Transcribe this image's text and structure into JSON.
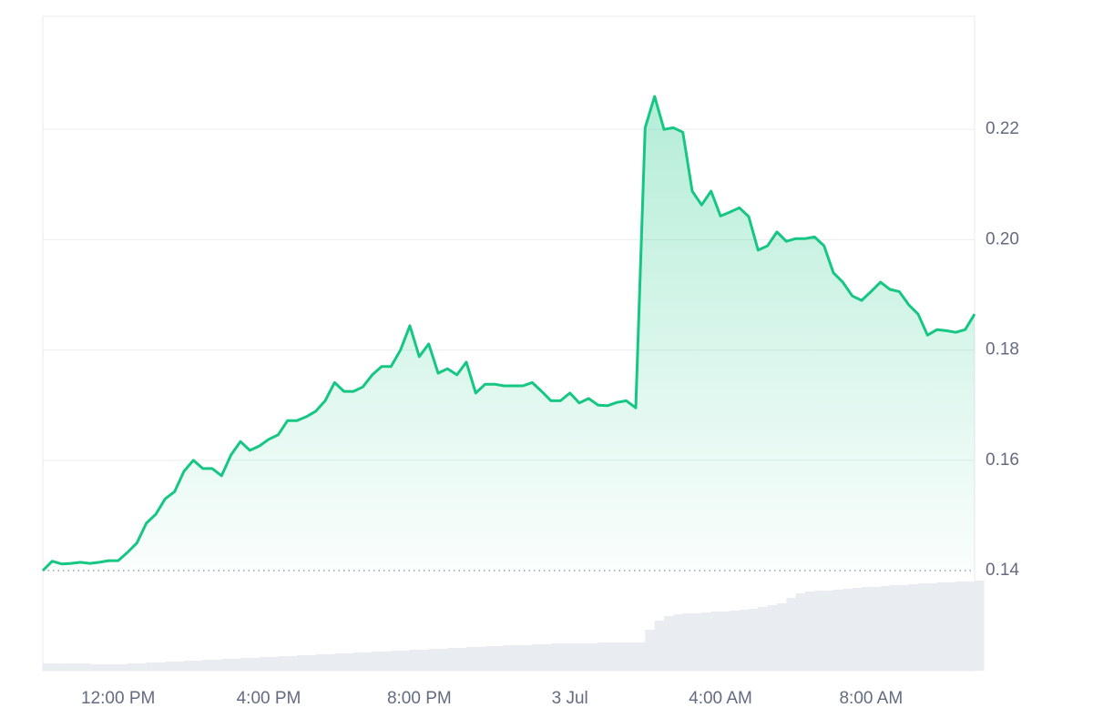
{
  "chart_data": {
    "type": "line",
    "x": [
      10,
      10.25,
      10.5,
      10.75,
      11,
      11.25,
      11.5,
      11.75,
      12,
      12.25,
      12.5,
      12.75,
      13,
      13.25,
      13.5,
      13.75,
      14,
      14.25,
      14.5,
      14.75,
      15,
      15.25,
      15.5,
      15.75,
      16,
      16.25,
      16.5,
      16.75,
      17,
      17.25,
      17.5,
      17.75,
      18,
      18.25,
      18.5,
      18.75,
      19,
      19.25,
      19.5,
      19.75,
      20,
      20.25,
      20.5,
      20.75,
      21,
      21.25,
      21.5,
      21.75,
      22,
      22.25,
      22.5,
      22.75,
      23,
      23.25,
      23.5,
      23.75,
      24,
      24.25,
      24.5,
      24.75,
      25,
      25.25,
      25.5,
      25.75,
      26,
      26.25,
      26.5,
      26.75,
      27,
      27.25,
      27.5,
      27.75,
      28,
      28.25,
      28.5,
      28.75,
      29,
      29.25,
      29.5,
      29.75,
      30,
      30.25,
      30.5,
      30.75,
      31,
      31.25,
      31.5,
      31.75,
      32,
      32.25,
      32.5,
      32.75,
      33,
      33.25,
      33.5,
      33.75,
      34,
      34.25,
      34.5,
      34.75
    ],
    "values": [
      0.14,
      0.1417,
      0.1412,
      0.1413,
      0.1415,
      0.1413,
      0.1415,
      0.1418,
      0.1418,
      0.1433,
      0.145,
      0.1486,
      0.1502,
      0.153,
      0.1543,
      0.158,
      0.16,
      0.1585,
      0.1585,
      0.1572,
      0.161,
      0.1634,
      0.1618,
      0.1626,
      0.1638,
      0.1646,
      0.1672,
      0.1672,
      0.1679,
      0.1689,
      0.1708,
      0.1741,
      0.1725,
      0.1725,
      0.1733,
      0.1755,
      0.177,
      0.177,
      0.18,
      0.1844,
      0.1788,
      0.1811,
      0.1758,
      0.1766,
      0.1755,
      0.1778,
      0.1722,
      0.1738,
      0.1738,
      0.1735,
      0.1735,
      0.1735,
      0.1741,
      0.1725,
      0.1708,
      0.1708,
      0.1722,
      0.1704,
      0.1712,
      0.17,
      0.1699,
      0.1705,
      0.1708,
      0.1695,
      0.2203,
      0.226,
      0.22,
      0.2203,
      0.2195,
      0.2088,
      0.2063,
      0.2088,
      0.2043,
      0.205,
      0.2058,
      0.2042,
      0.1981,
      0.1989,
      0.2014,
      0.1997,
      0.2002,
      0.2002,
      0.2005,
      0.1989,
      0.194,
      0.1923,
      0.1898,
      0.189,
      0.1906,
      0.1923,
      0.191,
      0.1906,
      0.1882,
      0.1865,
      0.1827,
      0.1837,
      0.1835,
      0.1832,
      0.1837,
      0.1865
    ],
    "color": "#16c784",
    "volume": {
      "color": "#e9ecf1",
      "ylim": [
        0,
        110
      ],
      "values": [
        8,
        8,
        8,
        8,
        8,
        7,
        7,
        7,
        7,
        8,
        8,
        9,
        9,
        10,
        10,
        11,
        11,
        12,
        12,
        13,
        13,
        14,
        14,
        15,
        15,
        16,
        16,
        17,
        17,
        18,
        18,
        19,
        19,
        20,
        20,
        21,
        21,
        22,
        22,
        23,
        23,
        24,
        24,
        25,
        25,
        26,
        26,
        27,
        27,
        28,
        28,
        28,
        29,
        29,
        30,
        30,
        30,
        30,
        30,
        31,
        31,
        31,
        31,
        31,
        45,
        55,
        60,
        62,
        63,
        63,
        64,
        65,
        65,
        66,
        67,
        68,
        70,
        72,
        74,
        80,
        85,
        87,
        88,
        88,
        89,
        90,
        91,
        92,
        92,
        93,
        94,
        94,
        95,
        96,
        96,
        97,
        97,
        98,
        98,
        99
      ]
    },
    "xlim": [
      10,
      34.75
    ],
    "xticks": [
      {
        "value": 12,
        "label": "12:00 PM"
      },
      {
        "value": 16,
        "label": "4:00 PM"
      },
      {
        "value": 20,
        "label": "8:00 PM"
      },
      {
        "value": 24,
        "label": "3 Jul"
      },
      {
        "value": 28,
        "label": "4:00 AM"
      },
      {
        "value": 32,
        "label": "8:00 AM"
      }
    ],
    "ylim": [
      0.14,
      0.2405
    ],
    "yticks": [
      0.14,
      0.16,
      0.18,
      {
        "value": 0.2,
        "label": "0.20"
      },
      0.22
    ],
    "grid": true
  }
}
